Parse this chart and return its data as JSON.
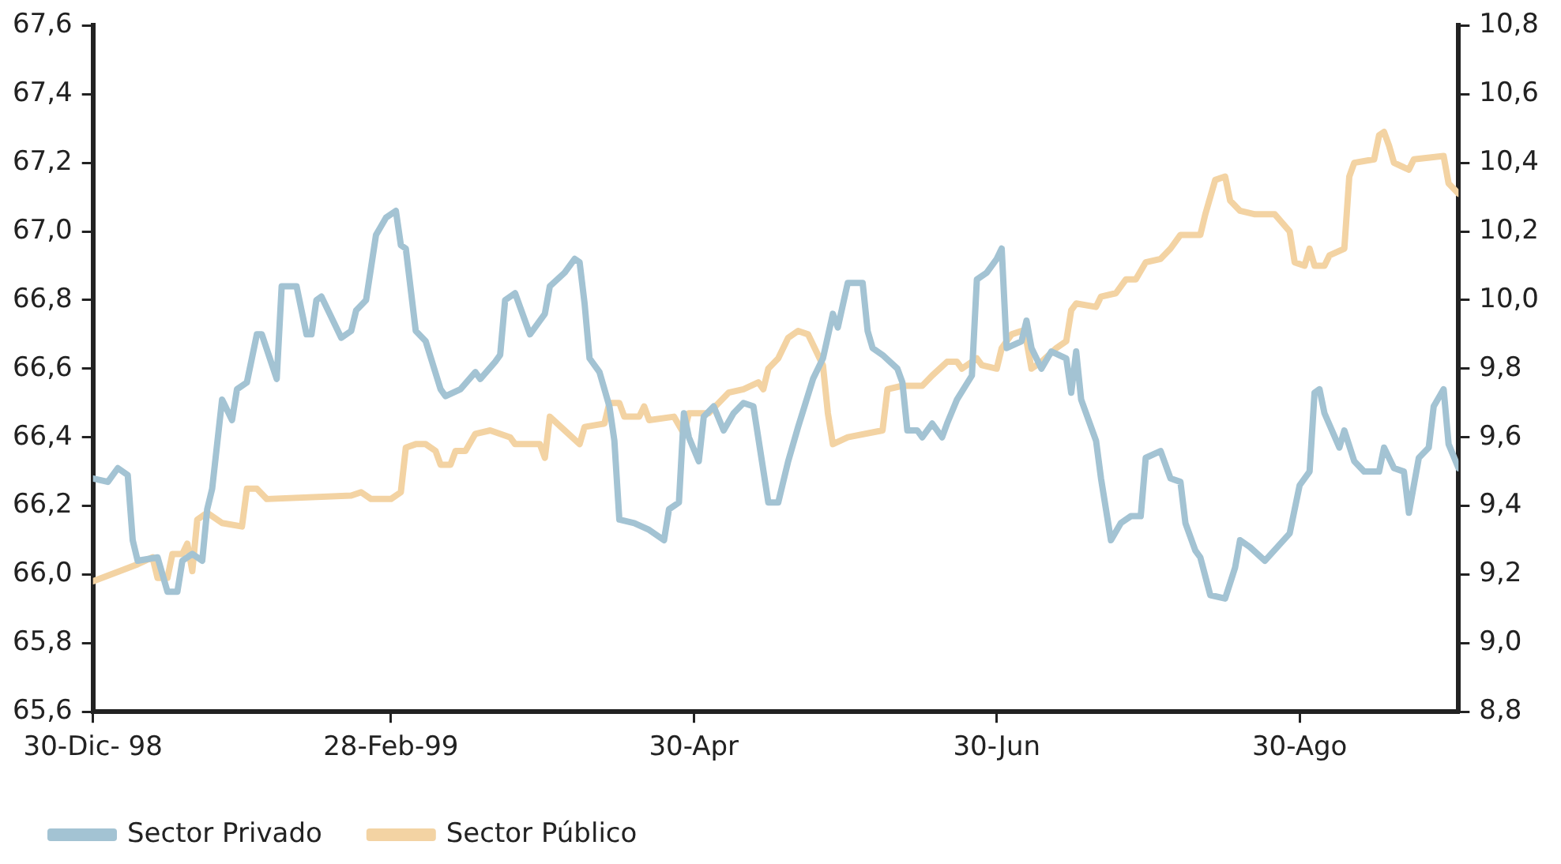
{
  "chart_data": {
    "type": "line",
    "legend": "bottom left",
    "grid": false,
    "marker": "none",
    "line_style": "solid",
    "xlim": [
      "1998-12-30",
      "1999-10-01"
    ],
    "xticks": [
      {
        "value": "1998-12-30",
        "label": "30-Dic- 98"
      },
      {
        "value": "1999-02-28",
        "label": "28-Feb-99"
      },
      {
        "value": "1999-04-30",
        "label": "30-Apr"
      },
      {
        "value": "1999-06-30",
        "label": "30-Jun"
      },
      {
        "value": "1999-08-30",
        "label": "30-Ago"
      }
    ],
    "ylim": [
      65.6,
      67.6
    ],
    "yticks": [
      {
        "value": 65.6,
        "label": "65,6"
      },
      {
        "value": 65.8,
        "label": "65,8"
      },
      {
        "value": 66.0,
        "label": "66,0"
      },
      {
        "value": 66.2,
        "label": "66,2"
      },
      {
        "value": 66.4,
        "label": "66,4"
      },
      {
        "value": 66.6,
        "label": "66,6"
      },
      {
        "value": 66.8,
        "label": "66,8"
      },
      {
        "value": 67.0,
        "label": "67,0"
      },
      {
        "value": 67.2,
        "label": "67,2"
      },
      {
        "value": 67.4,
        "label": "67,4"
      },
      {
        "value": 67.6,
        "label": "67,6"
      }
    ],
    "y2lim": [
      8.8,
      10.8
    ],
    "y2ticks": [
      {
        "value": 8.8,
        "label": "8,8"
      },
      {
        "value": 9.0,
        "label": "9,0"
      },
      {
        "value": 9.2,
        "label": "9,2"
      },
      {
        "value": 9.4,
        "label": "9,4"
      },
      {
        "value": 9.6,
        "label": "9,6"
      },
      {
        "value": 9.8,
        "label": "9,8"
      },
      {
        "value": 10.0,
        "label": "10,0"
      },
      {
        "value": 10.2,
        "label": "10,2"
      },
      {
        "value": 10.4,
        "label": "10,4"
      },
      {
        "value": 10.6,
        "label": "10,6"
      },
      {
        "value": 10.8,
        "label": "10,8"
      }
    ],
    "series": [
      {
        "name": "Sector Privado",
        "color": "#a3c3d3",
        "x": [
          "1998-12-30",
          "1999-01-02",
          "1999-01-04",
          "1999-01-06",
          "1999-01-07",
          "1999-01-08",
          "1999-01-12",
          "1999-01-14",
          "1999-01-16",
          "1999-01-17",
          "1999-01-19",
          "1999-01-21",
          "1999-01-22",
          "1999-01-23",
          "1999-01-25",
          "1999-01-27",
          "1999-01-28",
          "1999-01-30",
          "1999-02-01",
          "1999-02-02",
          "1999-02-05",
          "1999-02-06",
          "1999-02-09",
          "1999-02-11",
          "1999-02-12",
          "1999-02-13",
          "1999-02-14",
          "1999-02-18",
          "1999-02-20",
          "1999-02-21",
          "1999-02-23",
          "1999-02-25",
          "1999-02-27",
          "1999-03-01",
          "1999-03-02",
          "1999-03-03",
          "1999-03-05",
          "1999-03-07",
          "1999-03-10",
          "1999-03-11",
          "1999-03-14",
          "1999-03-17",
          "1999-03-18",
          "1999-03-21",
          "1999-03-22",
          "1999-03-23",
          "1999-03-25",
          "1999-03-28",
          "1999-03-31",
          "1999-04-01",
          "1999-04-04",
          "1999-04-06",
          "1999-04-07",
          "1999-04-08",
          "1999-04-09",
          "1999-04-11",
          "1999-04-13",
          "1999-04-14",
          "1999-04-15",
          "1999-04-18",
          "1999-04-21",
          "1999-04-24",
          "1999-04-25",
          "1999-04-27",
          "1999-04-28",
          "1999-04-29",
          "1999-05-01",
          "1999-05-02",
          "1999-05-04",
          "1999-05-06",
          "1999-05-08",
          "1999-05-10",
          "1999-05-12",
          "1999-05-15",
          "1999-05-17",
          "1999-05-19",
          "1999-05-21",
          "1999-05-24",
          "1999-05-26",
          "1999-05-28",
          "1999-05-29",
          "1999-05-31",
          "1999-06-03",
          "1999-06-04",
          "1999-06-05",
          "1999-06-07",
          "1999-06-10",
          "1999-06-11",
          "1999-06-12",
          "1999-06-14",
          "1999-06-15",
          "1999-06-17",
          "1999-06-19",
          "1999-06-20",
          "1999-06-22",
          "1999-06-25",
          "1999-06-26",
          "1999-06-28",
          "1999-06-30",
          "1999-07-01",
          "1999-07-02",
          "1999-07-05",
          "1999-07-06",
          "1999-07-07",
          "1999-07-09",
          "1999-07-11",
          "1999-07-14",
          "1999-07-15",
          "1999-07-16",
          "1999-07-17",
          "1999-07-20",
          "1999-07-21",
          "1999-07-23",
          "1999-07-25",
          "1999-07-27",
          "1999-07-29",
          "1999-07-30",
          "1999-08-02",
          "1999-08-04",
          "1999-08-06",
          "1999-08-07",
          "1999-08-09",
          "1999-08-10",
          "1999-08-12",
          "1999-08-15",
          "1999-08-17",
          "1999-08-18",
          "1999-08-20",
          "1999-08-23",
          "1999-08-28",
          "1999-08-30",
          "1999-09-01",
          "1999-09-02",
          "1999-09-03",
          "1999-09-04",
          "1999-09-07",
          "1999-09-08",
          "1999-09-10",
          "1999-09-12",
          "1999-09-15",
          "1999-09-16",
          "1999-09-18",
          "1999-09-20",
          "1999-09-21",
          "1999-09-23",
          "1999-09-25",
          "1999-09-26",
          "1999-09-28",
          "1999-09-29",
          "1999-10-01"
        ],
        "values": [
          66.28,
          66.27,
          66.31,
          66.29,
          66.1,
          66.04,
          66.05,
          65.95,
          65.95,
          66.04,
          66.06,
          66.04,
          66.19,
          66.25,
          66.51,
          66.45,
          66.54,
          66.56,
          66.7,
          66.7,
          66.57,
          66.84,
          66.84,
          66.7,
          66.7,
          66.8,
          66.81,
          66.69,
          66.71,
          66.77,
          66.8,
          66.99,
          67.04,
          67.06,
          66.96,
          66.95,
          66.71,
          66.68,
          66.54,
          66.52,
          66.54,
          66.59,
          66.57,
          66.62,
          66.64,
          66.8,
          66.82,
          66.7,
          66.76,
          66.84,
          66.88,
          66.92,
          66.91,
          66.79,
          66.63,
          66.59,
          66.49,
          66.39,
          66.16,
          66.15,
          66.13,
          66.1,
          66.19,
          66.21,
          66.47,
          66.4,
          66.33,
          66.46,
          66.49,
          66.42,
          66.47,
          66.5,
          66.49,
          66.21,
          66.21,
          66.33,
          66.43,
          66.57,
          66.63,
          66.76,
          66.72,
          66.85,
          66.85,
          66.71,
          66.66,
          66.64,
          66.6,
          66.56,
          66.42,
          66.42,
          66.4,
          66.44,
          66.4,
          66.44,
          66.51,
          66.58,
          66.86,
          66.88,
          66.92,
          66.95,
          66.66,
          66.68,
          66.74,
          66.66,
          66.6,
          66.65,
          66.63,
          66.53,
          66.65,
          66.51,
          66.39,
          66.28,
          66.1,
          66.15,
          66.17,
          66.17,
          66.34,
          66.36,
          66.28,
          66.27,
          66.15,
          66.07,
          66.05,
          65.94,
          65.93,
          66.02,
          66.1,
          66.08,
          66.04,
          66.12,
          66.26,
          66.3,
          66.53,
          66.54,
          66.47,
          66.37,
          66.42,
          66.33,
          66.3,
          66.3,
          66.37,
          66.31,
          66.3,
          66.18,
          66.34,
          66.37,
          66.49,
          66.54,
          66.38,
          66.31
        ]
      },
      {
        "name": "Sector Público",
        "color": "#f3d3a3",
        "axis": "y2",
        "x": [
          "1998-12-30",
          "1999-01-08",
          "1999-01-11",
          "1999-01-12",
          "1999-01-14",
          "1999-01-15",
          "1999-01-17",
          "1999-01-18",
          "1999-01-19",
          "1999-01-20",
          "1999-01-22",
          "1999-01-25",
          "1999-01-29",
          "1999-01-30",
          "1999-02-01",
          "1999-02-03",
          "1999-02-20",
          "1999-02-22",
          "1999-02-24",
          "1999-02-28",
          "1999-03-02",
          "1999-03-03",
          "1999-03-05",
          "1999-03-07",
          "1999-03-09",
          "1999-03-10",
          "1999-03-12",
          "1999-03-13",
          "1999-03-15",
          "1999-03-17",
          "1999-03-20",
          "1999-03-24",
          "1999-03-25",
          "1999-03-30",
          "1999-03-31",
          "1999-04-01",
          "1999-04-04",
          "1999-04-07",
          "1999-04-08",
          "1999-04-12",
          "1999-04-13",
          "1999-04-15",
          "1999-04-16",
          "1999-04-19",
          "1999-04-20",
          "1999-04-21",
          "1999-04-26",
          "1999-04-28",
          "1999-04-29",
          "1999-05-03",
          "1999-05-05",
          "1999-05-07",
          "1999-05-10",
          "1999-05-13",
          "1999-05-14",
          "1999-05-15",
          "1999-05-17",
          "1999-05-19",
          "1999-05-21",
          "1999-05-23",
          "1999-05-26",
          "1999-05-27",
          "1999-05-28",
          "1999-05-31",
          "1999-06-07",
          "1999-06-08",
          "1999-06-11",
          "1999-06-15",
          "1999-06-17",
          "1999-06-20",
          "1999-06-22",
          "1999-06-23",
          "1999-06-26",
          "1999-06-27",
          "1999-06-30",
          "1999-07-01",
          "1999-07-03",
          "1999-07-05",
          "1999-07-06",
          "1999-07-07",
          "1999-07-09",
          "1999-07-12",
          "1999-07-14",
          "1999-07-15",
          "1999-07-16",
          "1999-07-20",
          "1999-07-21",
          "1999-07-24",
          "1999-07-26",
          "1999-07-28",
          "1999-07-30",
          "1999-08-02",
          "1999-08-04",
          "1999-08-06",
          "1999-08-10",
          "1999-08-11",
          "1999-08-13",
          "1999-08-15",
          "1999-08-16",
          "1999-08-18",
          "1999-08-21",
          "1999-08-25",
          "1999-08-28",
          "1999-08-29",
          "1999-08-31",
          "1999-09-01",
          "1999-09-02",
          "1999-09-04",
          "1999-09-05",
          "1999-09-08",
          "1999-09-09",
          "1999-09-10",
          "1999-09-14",
          "1999-09-15",
          "1999-09-16",
          "1999-09-17",
          "1999-09-18",
          "1999-09-21",
          "1999-09-22",
          "1999-09-28",
          "1999-09-29",
          "1999-10-01"
        ],
        "values": [
          9.18,
          9.23,
          9.25,
          9.19,
          9.19,
          9.26,
          9.26,
          9.29,
          9.21,
          9.36,
          9.38,
          9.35,
          9.34,
          9.45,
          9.45,
          9.42,
          9.43,
          9.44,
          9.42,
          9.42,
          9.44,
          9.57,
          9.58,
          9.58,
          9.56,
          9.52,
          9.52,
          9.56,
          9.56,
          9.61,
          9.62,
          9.6,
          9.58,
          9.58,
          9.54,
          9.66,
          9.62,
          9.58,
          9.63,
          9.64,
          9.7,
          9.7,
          9.66,
          9.66,
          9.69,
          9.65,
          9.66,
          9.61,
          9.67,
          9.67,
          9.7,
          9.73,
          9.74,
          9.76,
          9.74,
          9.8,
          9.83,
          9.89,
          9.91,
          9.9,
          9.81,
          9.67,
          9.58,
          9.6,
          9.62,
          9.74,
          9.75,
          9.75,
          9.78,
          9.82,
          9.82,
          9.8,
          9.83,
          9.81,
          9.8,
          9.86,
          9.9,
          9.91,
          9.88,
          9.8,
          9.82,
          9.86,
          9.88,
          9.97,
          9.99,
          9.98,
          10.01,
          10.02,
          10.06,
          10.06,
          10.11,
          10.12,
          10.15,
          10.19,
          10.19,
          10.25,
          10.35,
          10.36,
          10.29,
          10.26,
          10.25,
          10.25,
          10.2,
          10.11,
          10.1,
          10.15,
          10.1,
          10.1,
          10.13,
          10.15,
          10.36,
          10.4,
          10.41,
          10.48,
          10.49,
          10.45,
          10.4,
          10.38,
          10.41,
          10.42,
          10.34,
          10.31
        ]
      }
    ]
  }
}
